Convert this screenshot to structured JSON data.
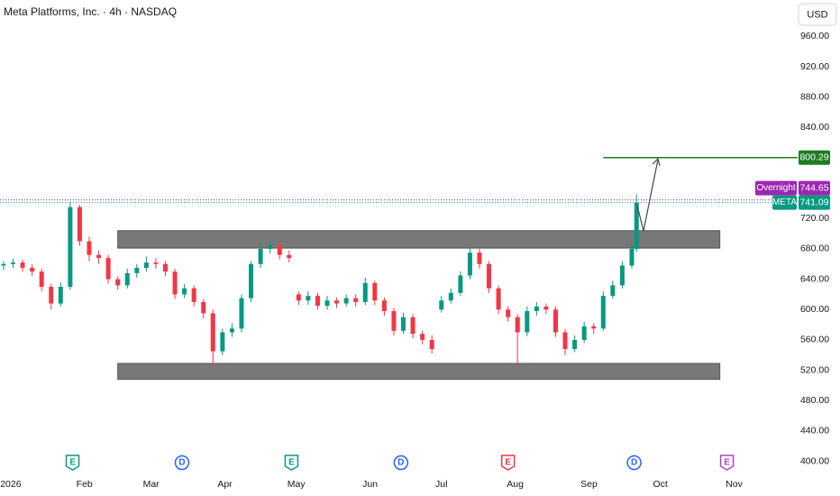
{
  "chart_data": {
    "type": "candlestick",
    "title": "Meta Platforms, Inc. · 4h · NASDAQ",
    "currency": "USD",
    "up_color": "#089981",
    "down_color": "#f23645",
    "x": [
      -3,
      1,
      5,
      9,
      13,
      17,
      21,
      25,
      29,
      33,
      37,
      41,
      45,
      49,
      53,
      57,
      61,
      65,
      69,
      73,
      77,
      81,
      85,
      89,
      93,
      97,
      101,
      105,
      109,
      113,
      117,
      121,
      125,
      129,
      133,
      137,
      141,
      145,
      149,
      153,
      157,
      161,
      165,
      169,
      173,
      177,
      181,
      185,
      189,
      193,
      197,
      201,
      205,
      209,
      213,
      217,
      221,
      225,
      229,
      233,
      237,
      241,
      245,
      249,
      253,
      257,
      261,
      263
    ],
    "open": [
      658,
      660,
      662,
      655,
      650,
      630,
      608,
      630,
      735,
      690,
      672,
      668,
      640,
      632,
      648,
      655,
      662,
      660,
      650,
      620,
      628,
      610,
      595,
      545,
      570,
      575,
      615,
      660,
      680,
      685,
      672,
      620,
      612,
      618,
      605,
      612,
      608,
      615,
      610,
      635,
      612,
      598,
      572,
      590,
      568,
      560,
      600,
      612,
      622,
      645,
      675,
      660,
      628,
      600,
      590,
      570,
      598,
      604,
      600,
      570,
      548,
      560,
      578,
      575,
      618,
      632,
      658,
      680
    ],
    "high": [
      664,
      667,
      666,
      660,
      654,
      634,
      636,
      742,
      738,
      696,
      678,
      672,
      644,
      654,
      660,
      670,
      668,
      664,
      654,
      634,
      632,
      614,
      600,
      575,
      582,
      620,
      664,
      688,
      690,
      690,
      678,
      624,
      624,
      622,
      618,
      616,
      620,
      620,
      642,
      638,
      616,
      602,
      596,
      594,
      572,
      566,
      618,
      628,
      650,
      682,
      680,
      664,
      632,
      604,
      594,
      604,
      610,
      608,
      604,
      574,
      566,
      584,
      582,
      624,
      638,
      664,
      688,
      752
    ],
    "low": [
      652,
      655,
      650,
      644,
      624,
      600,
      604,
      626,
      684,
      664,
      660,
      634,
      626,
      628,
      642,
      650,
      654,
      644,
      614,
      615,
      604,
      588,
      526,
      540,
      564,
      570,
      610,
      655,
      674,
      666,
      662,
      606,
      606,
      600,
      600,
      602,
      604,
      604,
      606,
      606,
      592,
      566,
      568,
      562,
      554,
      542,
      596,
      608,
      618,
      640,
      654,
      622,
      594,
      584,
      526,
      565,
      592,
      594,
      564,
      540,
      544,
      556,
      568,
      572,
      614,
      628,
      654,
      676
    ],
    "close": [
      660,
      662,
      655,
      650,
      630,
      608,
      630,
      735,
      690,
      672,
      668,
      640,
      632,
      648,
      655,
      662,
      660,
      650,
      620,
      628,
      610,
      595,
      545,
      570,
      575,
      615,
      660,
      680,
      685,
      672,
      668,
      612,
      618,
      605,
      612,
      608,
      615,
      610,
      635,
      612,
      598,
      572,
      590,
      568,
      560,
      548,
      612,
      622,
      645,
      675,
      660,
      628,
      600,
      590,
      570,
      598,
      604,
      600,
      570,
      548,
      560,
      578,
      575,
      618,
      632,
      658,
      680,
      741
    ],
    "xlim": [
      -4.5,
      330.7
    ],
    "xticks": [
      {
        "value": 0,
        "label": "2026"
      },
      {
        "value": 31,
        "label": "Feb"
      },
      {
        "value": 59,
        "label": "Mar"
      },
      {
        "value": 90,
        "label": "Apr"
      },
      {
        "value": 120,
        "label": "May"
      },
      {
        "value": 151,
        "label": "Jun"
      },
      {
        "value": 181,
        "label": "Jul"
      },
      {
        "value": 212,
        "label": "Aug"
      },
      {
        "value": 243,
        "label": "Sep"
      },
      {
        "value": 273,
        "label": "Oct"
      },
      {
        "value": 304,
        "label": "Nov"
      }
    ],
    "ylim": [
      384,
      1008
    ],
    "yticks": [
      {
        "value": 400,
        "label": "400.00"
      },
      {
        "value": 440,
        "label": "440.00"
      },
      {
        "value": 480,
        "label": "480.00"
      },
      {
        "value": 520,
        "label": "520.00"
      },
      {
        "value": 560,
        "label": "560.00"
      },
      {
        "value": 600,
        "label": "600.00"
      },
      {
        "value": 640,
        "label": "640.00"
      },
      {
        "value": 680,
        "label": "680.00"
      },
      {
        "value": 720,
        "label": "720.00"
      },
      {
        "value": 840,
        "label": "840.00"
      },
      {
        "value": 880,
        "label": "880.00"
      },
      {
        "value": 920,
        "label": "920.00"
      },
      {
        "value": 960,
        "label": "960.00"
      }
    ],
    "zones": [
      {
        "x_start": 45,
        "x_end": 298,
        "top": 704,
        "bottom": 681,
        "color": "#787878"
      },
      {
        "x_start": 45,
        "x_end": 298,
        "top": 529,
        "bottom": 508,
        "color": "#787878"
      }
    ],
    "target": {
      "value": 800.29,
      "x_start": 249,
      "color": "#1e7d22"
    },
    "overnight": {
      "name": "Overnight",
      "value": 744.65,
      "color": "#9c27b0"
    },
    "last": {
      "name": "META",
      "value": 741.09,
      "color": "#089981"
    },
    "events": [
      {
        "x": 26,
        "label": "E",
        "color": "#089981"
      },
      {
        "x": 72,
        "label": "D",
        "color": "#2962ff"
      },
      {
        "x": 118,
        "label": "E",
        "color": "#089981"
      },
      {
        "x": 164,
        "label": "D",
        "color": "#2962ff"
      },
      {
        "x": 209,
        "label": "E",
        "color": "#f23645"
      },
      {
        "x": 262,
        "label": "D",
        "color": "#2962ff"
      },
      {
        "x": 301,
        "label": "E",
        "color": "#ab47bc"
      }
    ]
  }
}
